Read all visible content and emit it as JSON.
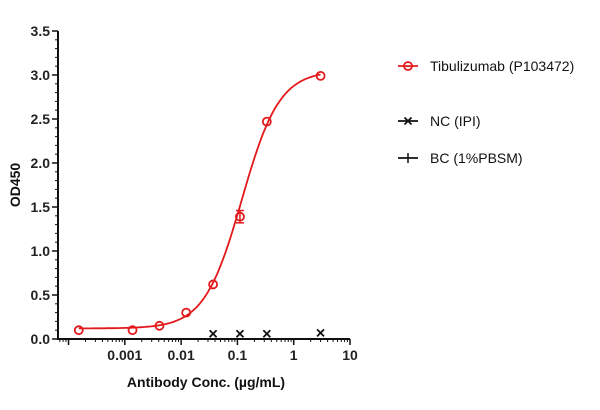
{
  "chart_data": {
    "type": "scatter",
    "title": "",
    "xlabel": "Antibody Conc. (µg/mL)",
    "ylabel": "OD450",
    "xscale": "log",
    "xlim": [
      6.5e-05,
      10
    ],
    "ylim": [
      0,
      3.5
    ],
    "xticks": [
      0.001,
      0.01,
      0.1,
      1,
      10
    ],
    "xtick_labels": [
      "0.001",
      "0.01",
      "0.1",
      "1",
      "10"
    ],
    "yticks": [
      0,
      0.5,
      1,
      1.5,
      2,
      2.5,
      3,
      3.5
    ],
    "ytick_labels": [
      "0.0",
      "0.5",
      "1.0",
      "1.5",
      "2.0",
      "2.5",
      "3.0",
      "3.5"
    ],
    "grid": false,
    "legend_position": "right",
    "series": [
      {
        "name": "Tibulizumab (P103472)",
        "color": "#e31a1c",
        "marker": "open-circle",
        "x": [
          0.000152,
          0.00137,
          0.00412,
          0.0123,
          0.037,
          0.111,
          0.333,
          3
        ],
        "y": [
          0.1,
          0.1,
          0.15,
          0.3,
          0.62,
          1.39,
          2.47,
          2.99
        ],
        "error": [
          0,
          0,
          0,
          0,
          0,
          0.07,
          0,
          0
        ],
        "fit": {
          "model": "4PL",
          "bottom": 0.12,
          "top": 3.05,
          "ec50": 0.12,
          "hill": 1.3
        }
      },
      {
        "name": "NC (IPI)",
        "color": "#111111",
        "marker": "x-cross",
        "x": [
          0.037,
          0.111,
          0.333,
          3
        ],
        "y": [
          0.06,
          0.06,
          0.06,
          0.07
        ]
      },
      {
        "name": "BC (1%PBSM)",
        "color": "#111111",
        "marker": "plus",
        "x": [],
        "y": []
      }
    ]
  }
}
